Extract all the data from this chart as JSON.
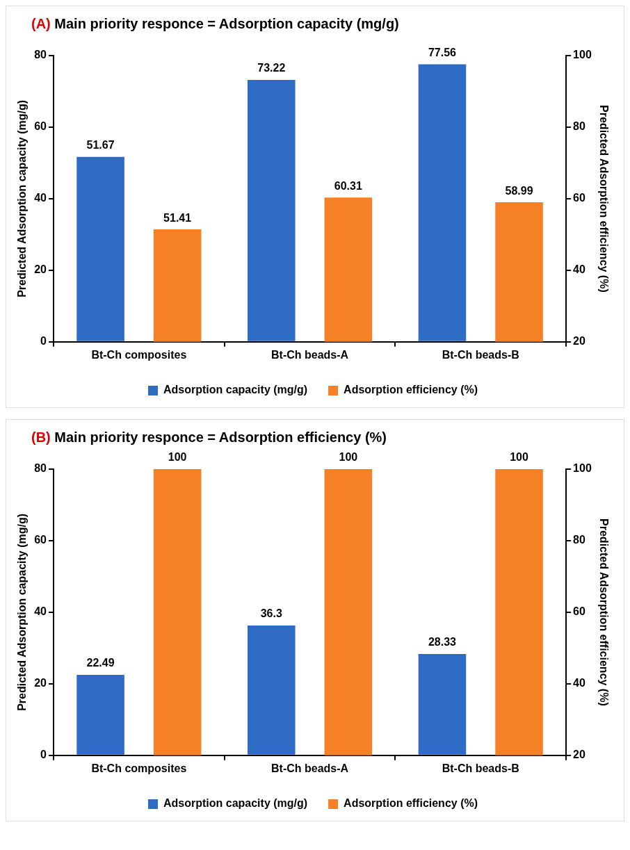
{
  "chart_data": [
    {
      "type": "bar",
      "title": "(A) Main priority responce = Adsorption capacity (mg/g)",
      "categories": [
        "Bt-Ch composites",
        "Bt-Ch beads-A",
        "Bt-Ch beads-B"
      ],
      "ylabel": "Predicted Adsorption capacity (mg/g)",
      "y2label": "Predicted Adsorption efficiency (%)",
      "ylim": [
        0,
        80
      ],
      "yticks": [
        0,
        20,
        40,
        60,
        80
      ],
      "y2lim": [
        20,
        100
      ],
      "y2ticks": [
        20,
        40,
        60,
        80,
        100
      ],
      "data_labels": true,
      "legend": "bottom",
      "grid": false,
      "series": [
        {
          "name": "Adsorption capacity (mg/g)",
          "color": "#2e6bc4",
          "values": [
            51.67,
            73.22,
            77.56
          ]
        },
        {
          "name": "Adsorption efficiency (%)",
          "color": "#f58025",
          "axis": "y2",
          "values": [
            51.41,
            60.31,
            58.99
          ]
        }
      ]
    },
    {
      "type": "bar",
      "title": "(B) Main priority responce = Adsorption efficiency (%)",
      "categories": [
        "Bt-Ch composites",
        "Bt-Ch beads-A",
        "Bt-Ch beads-B"
      ],
      "ylabel": "Predicted Adsorption capacity (mg/g)",
      "y2label": "Predicted Adsorption efficiency (%)",
      "ylim": [
        0,
        80
      ],
      "yticks": [
        0,
        20,
        40,
        60,
        80
      ],
      "y2lim": [
        20,
        100
      ],
      "y2ticks": [
        20,
        40,
        60,
        80,
        100
      ],
      "data_labels": true,
      "legend": "bottom",
      "grid": false,
      "series": [
        {
          "name": "Adsorption capacity (mg/g)",
          "color": "#2e6bc4",
          "values": [
            22.49,
            36.3,
            28.33
          ]
        },
        {
          "name": "Adsorption efficiency (%)",
          "color": "#f58025",
          "axis": "y2",
          "values": [
            100,
            100,
            100
          ]
        }
      ]
    }
  ]
}
